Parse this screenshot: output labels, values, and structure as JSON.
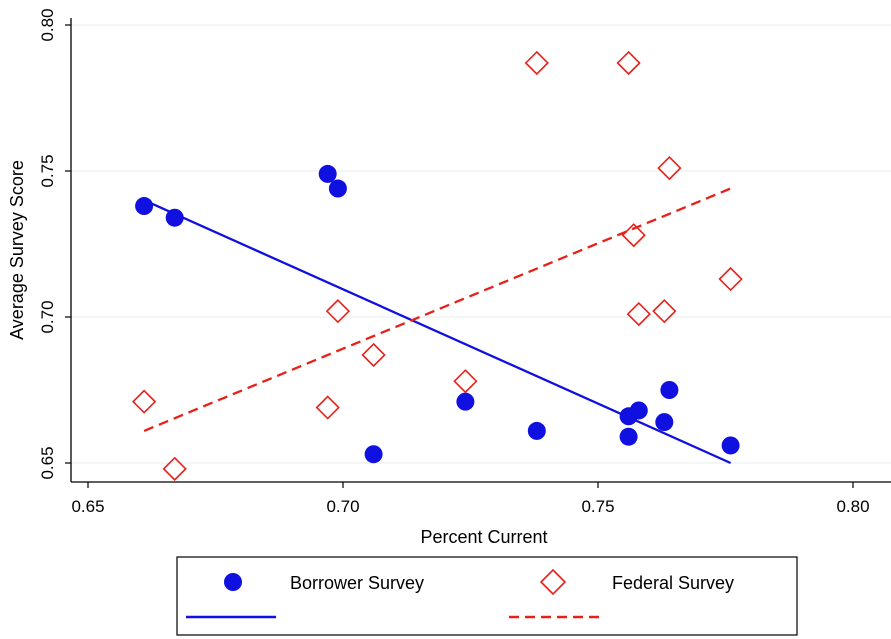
{
  "chart_data": {
    "type": "scatter",
    "xlabel": "Percent Current",
    "ylabel": "Average Survey Score",
    "xlim": [
      0.65,
      0.8
    ],
    "ylim": [
      0.65,
      0.8
    ],
    "x_ticks": [
      "0.65",
      "0.70",
      "0.75",
      "0.80"
    ],
    "y_ticks": [
      "0.65",
      "0.70",
      "0.75",
      "0.80"
    ],
    "grid": "horizontal",
    "legend_position": "bottom",
    "series": [
      {
        "name": "Borrower Survey",
        "marker": "filled-circle",
        "color": "#1010e0",
        "points": [
          [
            0.661,
            0.738
          ],
          [
            0.667,
            0.734
          ],
          [
            0.697,
            0.749
          ],
          [
            0.699,
            0.744
          ],
          [
            0.706,
            0.653
          ],
          [
            0.724,
            0.671
          ],
          [
            0.738,
            0.661
          ],
          [
            0.756,
            0.659
          ],
          [
            0.756,
            0.666
          ],
          [
            0.758,
            0.668
          ],
          [
            0.763,
            0.664
          ],
          [
            0.764,
            0.675
          ],
          [
            0.776,
            0.656
          ]
        ],
        "fit": {
          "type": "solid-line",
          "x": [
            0.661,
            0.776
          ],
          "y": [
            0.74,
            0.65
          ]
        }
      },
      {
        "name": "Federal Survey",
        "marker": "hollow-diamond",
        "color": "#e8201a",
        "points": [
          [
            0.661,
            0.671
          ],
          [
            0.667,
            0.648
          ],
          [
            0.697,
            0.669
          ],
          [
            0.699,
            0.702
          ],
          [
            0.706,
            0.687
          ],
          [
            0.724,
            0.678
          ],
          [
            0.738,
            0.787
          ],
          [
            0.756,
            0.787
          ],
          [
            0.757,
            0.728
          ],
          [
            0.758,
            0.701
          ],
          [
            0.763,
            0.702
          ],
          [
            0.764,
            0.751
          ],
          [
            0.776,
            0.713
          ]
        ],
        "fit": {
          "type": "dashed-line",
          "x": [
            0.661,
            0.776
          ],
          "y": [
            0.661,
            0.744
          ]
        }
      }
    ]
  }
}
